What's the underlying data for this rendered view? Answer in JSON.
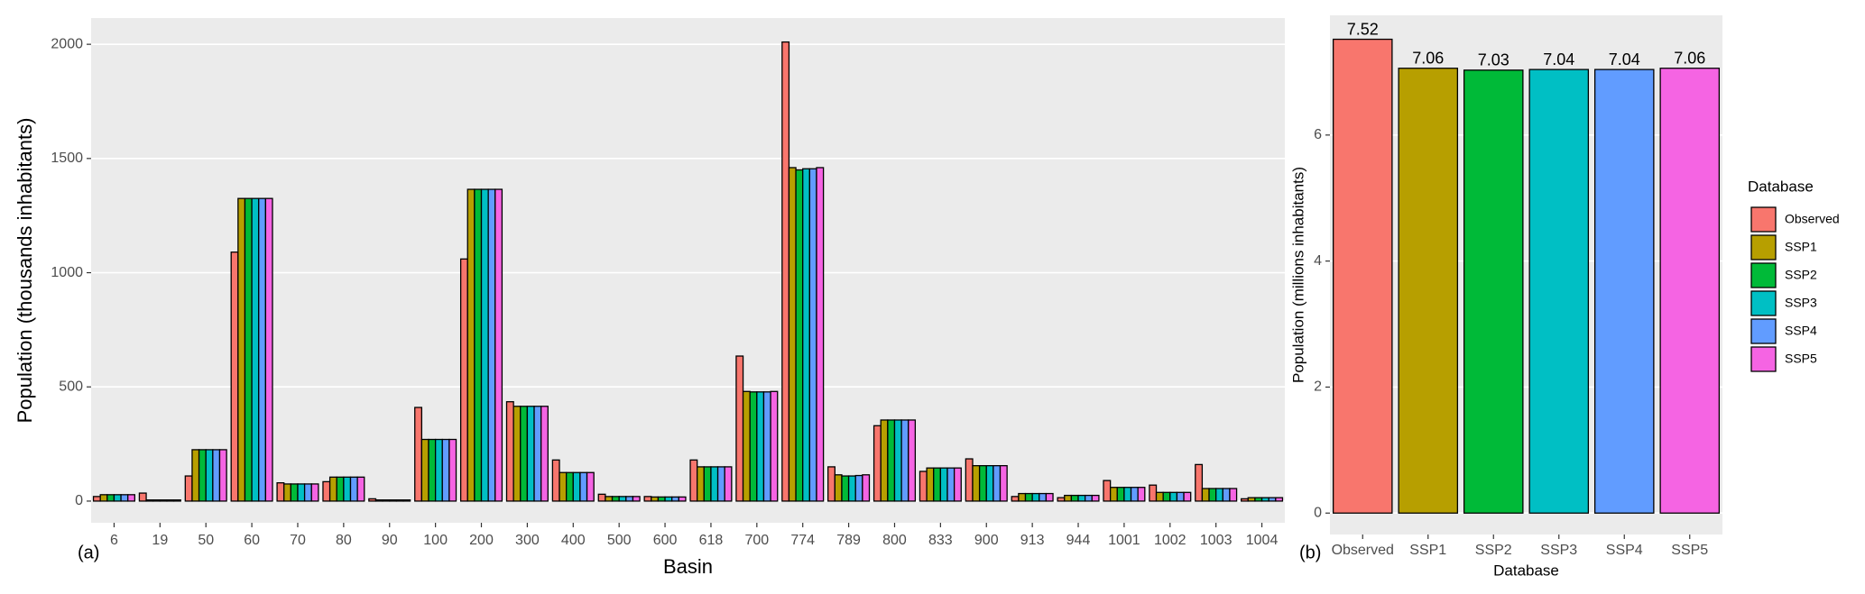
{
  "chart_data": [
    {
      "type": "grouped-bar",
      "panel_label": "(a)",
      "xlabel": "Basin",
      "ylabel": "Population (thousands inhabitants)",
      "categories": [
        "6",
        "19",
        "50",
        "60",
        "70",
        "80",
        "90",
        "100",
        "200",
        "300",
        "400",
        "500",
        "600",
        "618",
        "700",
        "774",
        "789",
        "800",
        "833",
        "900",
        "913",
        "944",
        "1001",
        "1002",
        "1003",
        "1004"
      ],
      "series": [
        {
          "name": "Observed",
          "color": "#F8766D",
          "values": [
            20,
            35,
            110,
            1090,
            80,
            85,
            10,
            410,
            1060,
            435,
            180,
            30,
            20,
            180,
            635,
            2010,
            150,
            330,
            130,
            185,
            20,
            15,
            90,
            70,
            160,
            10
          ]
        },
        {
          "name": "SSP1",
          "color": "#B79F00",
          "values": [
            28,
            5,
            225,
            1325,
            75,
            105,
            5,
            270,
            1365,
            415,
            125,
            20,
            18,
            150,
            480,
            1460,
            115,
            355,
            145,
            155,
            33,
            25,
            60,
            38,
            55,
            15
          ]
        },
        {
          "name": "SSP2",
          "color": "#00BA38",
          "values": [
            28,
            5,
            225,
            1325,
            75,
            105,
            5,
            270,
            1365,
            415,
            125,
            20,
            18,
            150,
            478,
            1450,
            110,
            355,
            145,
            155,
            33,
            25,
            60,
            38,
            55,
            15
          ]
        },
        {
          "name": "SSP3",
          "color": "#00BFC4",
          "values": [
            28,
            5,
            225,
            1325,
            75,
            105,
            5,
            270,
            1365,
            415,
            125,
            20,
            18,
            150,
            478,
            1455,
            110,
            355,
            145,
            155,
            33,
            25,
            60,
            38,
            55,
            15
          ]
        },
        {
          "name": "SSP4",
          "color": "#619CFF",
          "values": [
            28,
            5,
            225,
            1325,
            75,
            105,
            5,
            270,
            1365,
            415,
            125,
            20,
            18,
            150,
            478,
            1455,
            112,
            355,
            145,
            155,
            33,
            25,
            60,
            38,
            55,
            15
          ]
        },
        {
          "name": "SSP5",
          "color": "#F564E3",
          "values": [
            28,
            5,
            225,
            1325,
            75,
            105,
            5,
            270,
            1365,
            415,
            125,
            20,
            18,
            150,
            480,
            1460,
            115,
            355,
            145,
            155,
            33,
            25,
            60,
            38,
            55,
            15
          ]
        }
      ],
      "ylim": [
        -95,
        2115
      ],
      "yticks": [
        0,
        500,
        1000,
        1500,
        2000
      ],
      "grid": true
    },
    {
      "type": "bar",
      "panel_label": "(b)",
      "xlabel": "Database",
      "ylabel": "Population (millions inhabitants)",
      "categories": [
        "Observed",
        "SSP1",
        "SSP2",
        "SSP3",
        "SSP4",
        "SSP5"
      ],
      "values": [
        7.52,
        7.06,
        7.03,
        7.04,
        7.04,
        7.06
      ],
      "colors": [
        "#F8766D",
        "#B79F00",
        "#00BA38",
        "#00BFC4",
        "#619CFF",
        "#F564E3"
      ],
      "ylim": [
        -0.34,
        7.9
      ],
      "yticks": [
        0,
        2,
        4,
        6
      ],
      "grid": true,
      "legend": {
        "title": "Database",
        "position": "right"
      }
    }
  ]
}
